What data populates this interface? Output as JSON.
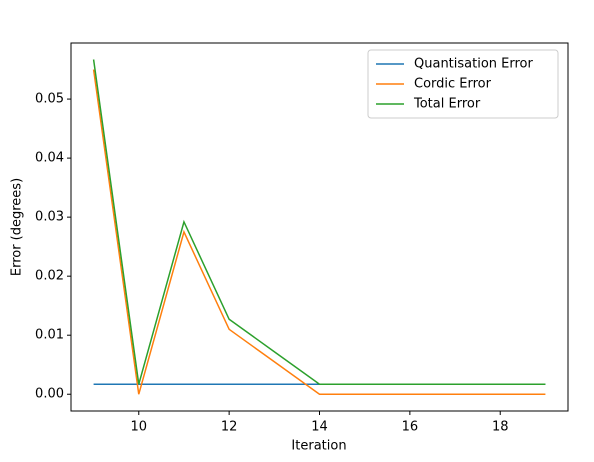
{
  "chart_data": {
    "type": "line",
    "x_label": "Iteration",
    "y_label": "Error (degrees)",
    "x": [
      9,
      10,
      11,
      12,
      13,
      14,
      15,
      16,
      17,
      18,
      19
    ],
    "series": [
      {
        "name": "Quantisation Error",
        "color": "#1f77b4",
        "values": [
          0.0017,
          0.0017,
          0.0017,
          0.0017,
          0.0017,
          0.0017,
          0.0017,
          0.0017,
          0.0017,
          0.0017,
          0.0017
        ]
      },
      {
        "name": "Cordic Error",
        "color": "#ff7f0e",
        "values": [
          0.055,
          0,
          0.0275,
          0.011,
          0.0055,
          0,
          0,
          0,
          0,
          0,
          0
        ]
      },
      {
        "name": "Total Error",
        "color": "#2ca02c",
        "values": [
          0.0567,
          0.0017,
          0.0292,
          0.0127,
          0.0072,
          0.0017,
          0.0017,
          0.0017,
          0.0017,
          0.0017,
          0.0017
        ]
      }
    ],
    "xlim": [
      8.5,
      19.5
    ],
    "xticks": [
      10,
      12,
      14,
      16,
      18
    ],
    "ylim": [
      -0.00284,
      0.0595
    ],
    "yticks": [
      {
        "value": 0,
        "label": "0.00"
      },
      {
        "value": 0.01,
        "label": "0.01"
      },
      {
        "value": 0.02,
        "label": "0.02"
      },
      {
        "value": 0.03,
        "label": "0.03"
      },
      {
        "value": 0.04,
        "label": "0.04"
      },
      {
        "value": 0.05,
        "label": "0.05"
      }
    ],
    "legend": "upper right"
  }
}
